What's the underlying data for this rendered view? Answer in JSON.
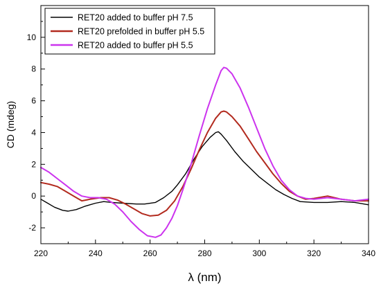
{
  "chart_data": {
    "type": "line",
    "xlabel": "λ (nm)",
    "ylabel": "CD (mdeg)",
    "xlim": [
      220,
      340
    ],
    "ylim": [
      -3,
      12
    ],
    "x_ticks": [
      220,
      240,
      260,
      280,
      300,
      320,
      340
    ],
    "y_ticks": [
      -2,
      0,
      2,
      4,
      6,
      8,
      10
    ],
    "grid": false,
    "legend_position": "top-left",
    "series": [
      {
        "name": "RET20 added to buffer pH 7.5",
        "color": "#000000",
        "x": [
          220,
          222,
          225,
          228,
          230,
          233,
          236,
          240,
          243,
          246,
          250,
          255,
          258,
          262,
          265,
          268,
          270,
          273,
          276,
          279,
          282,
          284,
          285,
          286,
          288,
          291,
          294,
          297,
          300,
          303,
          306,
          309,
          312,
          315,
          320,
          325,
          330,
          335,
          340
        ],
        "y": [
          -0.2,
          -0.4,
          -0.7,
          -0.9,
          -0.95,
          -0.85,
          -0.65,
          -0.45,
          -0.35,
          -0.4,
          -0.45,
          -0.5,
          -0.5,
          -0.4,
          -0.1,
          0.3,
          0.7,
          1.4,
          2.3,
          3.1,
          3.7,
          4.0,
          4.05,
          3.9,
          3.5,
          2.8,
          2.2,
          1.7,
          1.2,
          0.8,
          0.4,
          0.1,
          -0.15,
          -0.35,
          -0.4,
          -0.4,
          -0.35,
          -0.4,
          -0.55
        ]
      },
      {
        "name": "RET20 prefolded in buffer pH 5.5",
        "color": "#b22a1e",
        "x": [
          220,
          223,
          226,
          229,
          232,
          235,
          238,
          242,
          245,
          248,
          251,
          254,
          257,
          260,
          263,
          266,
          269,
          272,
          275,
          278,
          281,
          284,
          286,
          287,
          288,
          290,
          293,
          296,
          299,
          302,
          305,
          308,
          311,
          314,
          317,
          320,
          325,
          330,
          335,
          340
        ],
        "y": [
          0.85,
          0.75,
          0.6,
          0.3,
          0.0,
          -0.3,
          -0.2,
          -0.1,
          -0.1,
          -0.25,
          -0.5,
          -0.8,
          -1.1,
          -1.25,
          -1.2,
          -0.9,
          -0.3,
          0.6,
          1.7,
          2.9,
          4.0,
          4.9,
          5.3,
          5.35,
          5.3,
          5.0,
          4.4,
          3.6,
          2.8,
          2.1,
          1.4,
          0.8,
          0.3,
          0.0,
          -0.2,
          -0.15,
          0.0,
          -0.2,
          -0.3,
          -0.3
        ]
      },
      {
        "name": "RET20 added to buffer pH 5.5",
        "color": "#cc33ee",
        "x": [
          220,
          223,
          226,
          229,
          232,
          235,
          238,
          241,
          244,
          247,
          250,
          253,
          256,
          259,
          262,
          264,
          266,
          268,
          270,
          272,
          275,
          278,
          281,
          284,
          286,
          287,
          288,
          290,
          293,
          296,
          299,
          302,
          305,
          308,
          311,
          314,
          317,
          320,
          325,
          330,
          335,
          340
        ],
        "y": [
          1.8,
          1.5,
          1.1,
          0.7,
          0.3,
          0.0,
          -0.1,
          -0.1,
          -0.2,
          -0.5,
          -1.0,
          -1.6,
          -2.1,
          -2.5,
          -2.6,
          -2.45,
          -2.0,
          -1.4,
          -0.6,
          0.4,
          2.0,
          3.8,
          5.5,
          7.0,
          7.9,
          8.1,
          8.05,
          7.7,
          6.8,
          5.6,
          4.3,
          3.0,
          1.9,
          1.0,
          0.4,
          0.0,
          -0.15,
          -0.2,
          -0.1,
          -0.2,
          -0.3,
          -0.2
        ]
      }
    ]
  }
}
